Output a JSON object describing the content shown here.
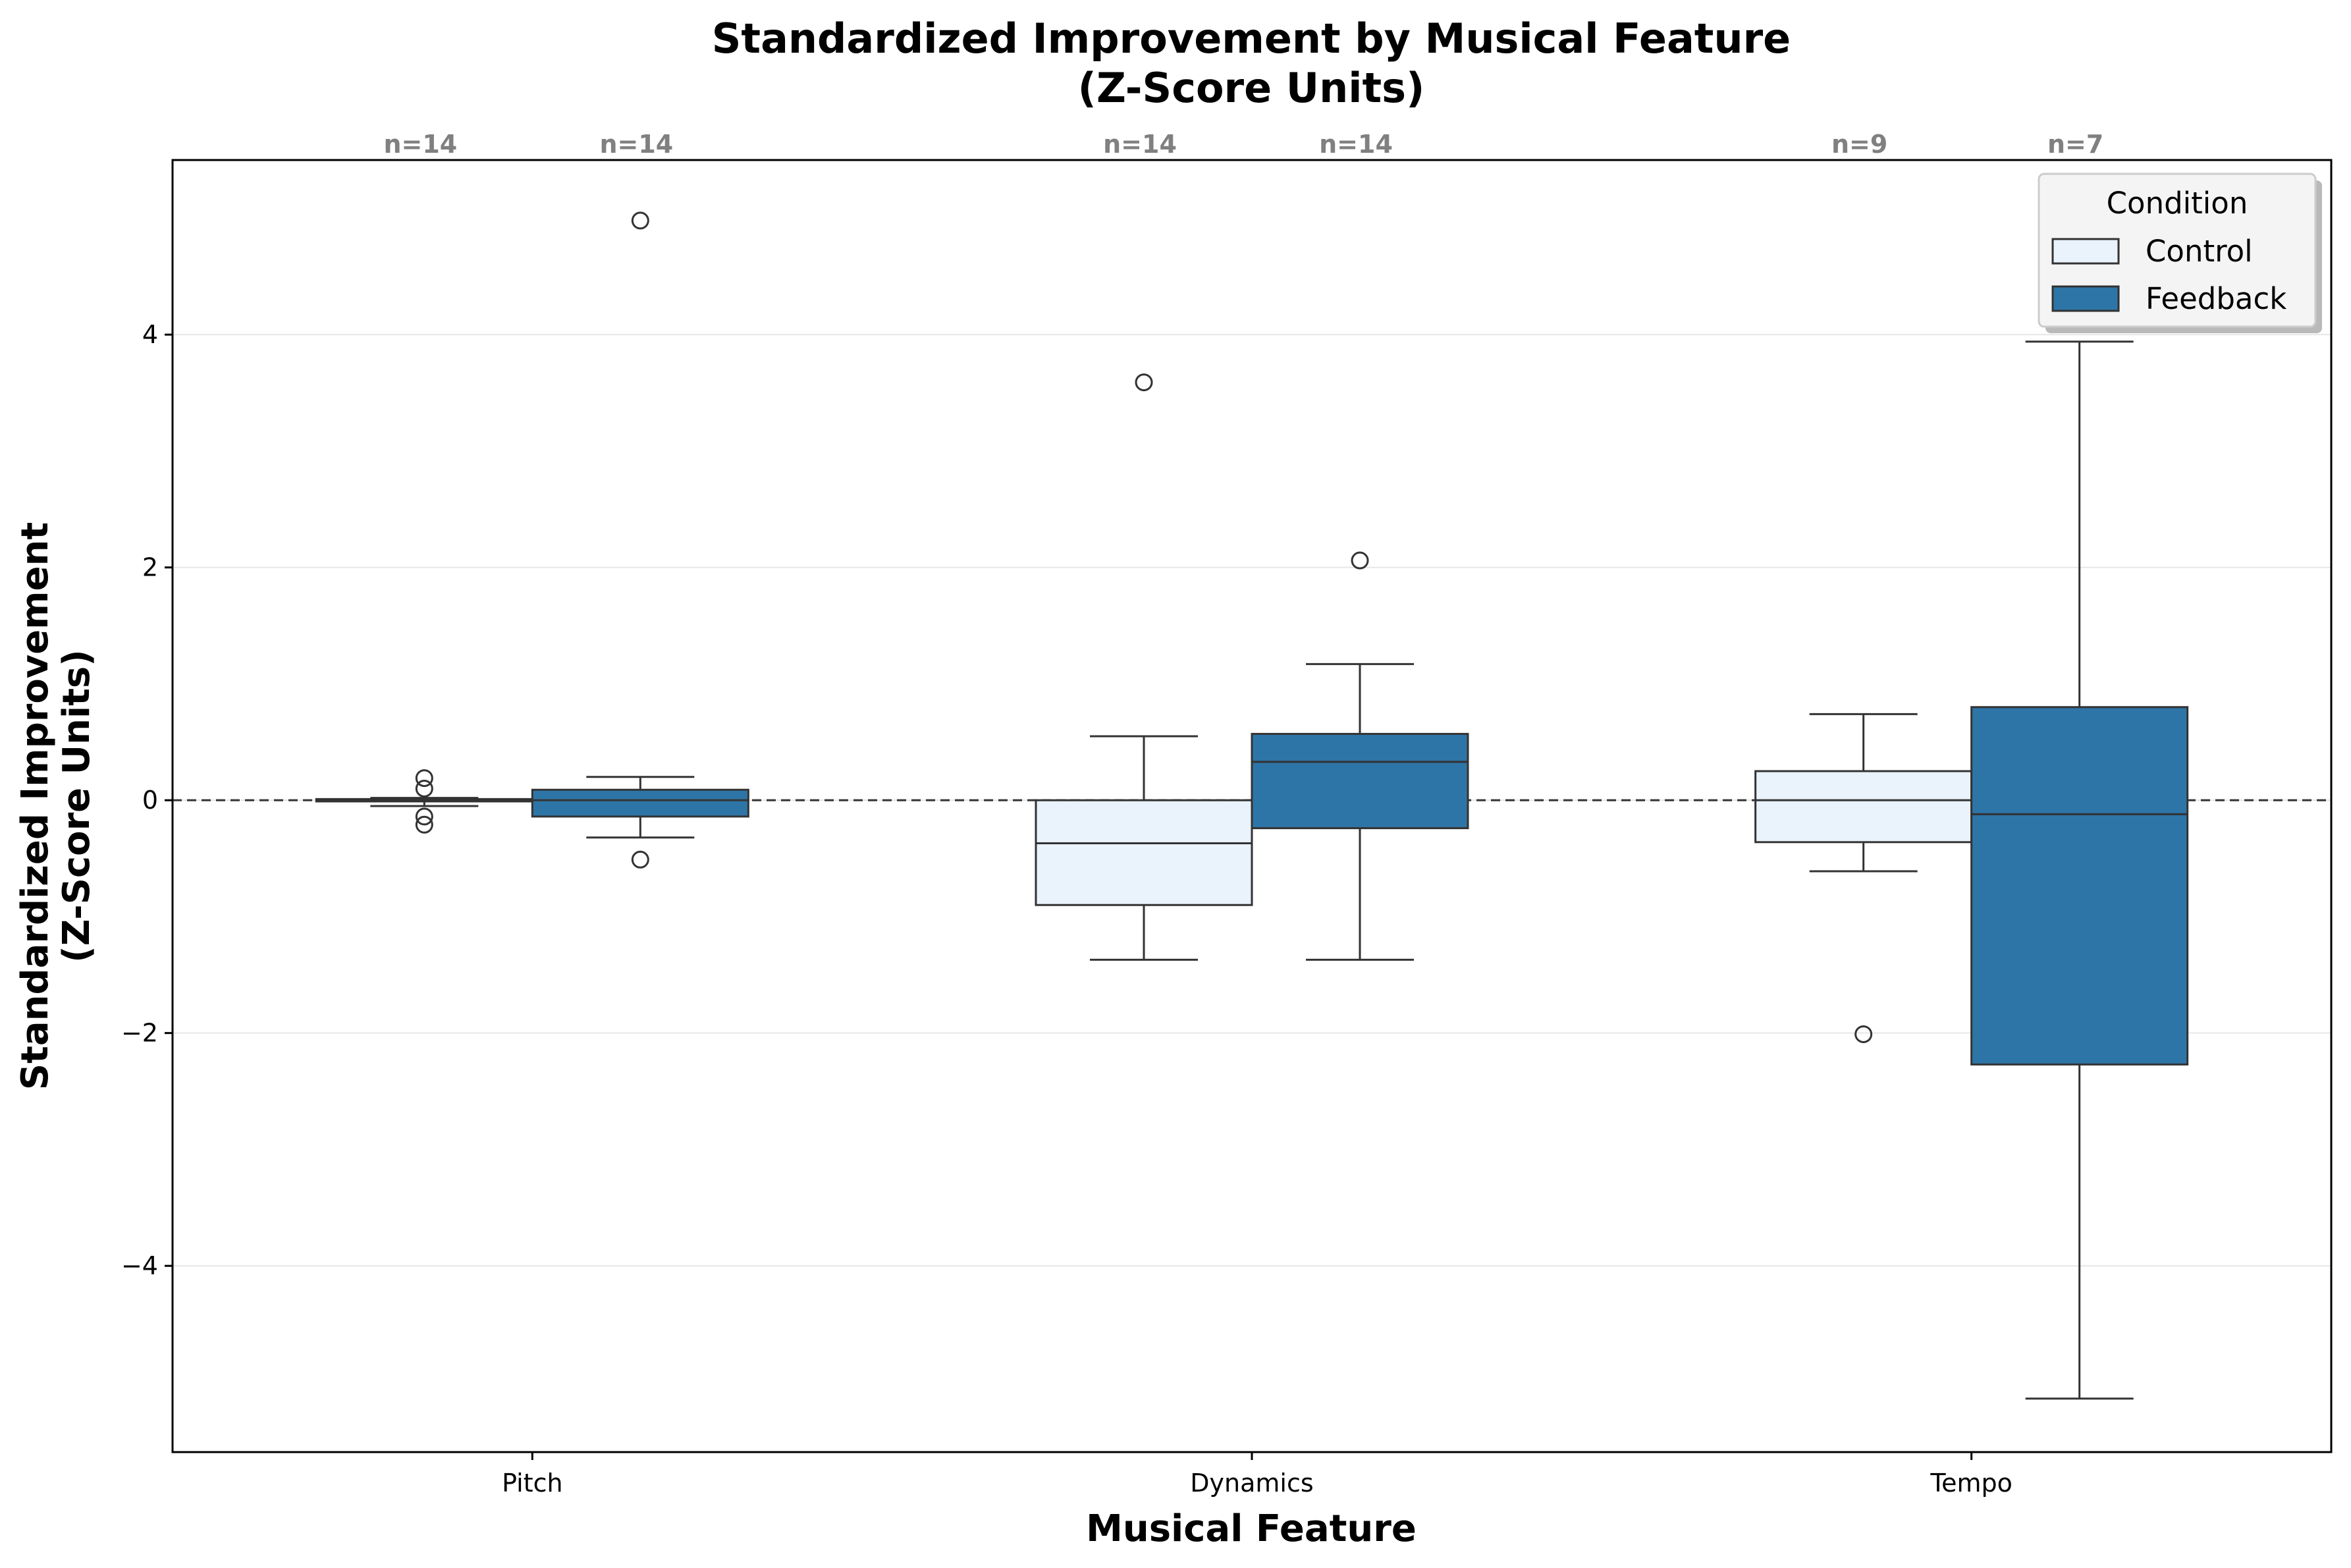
{
  "chart_data": {
    "type": "box",
    "title_line1": "Standardized Improvement by Musical Feature",
    "title_line2": "(Z-Score Units)",
    "xlabel": "Musical Feature",
    "ylabel_line1": "Standardized Improvement",
    "ylabel_line2": "(Z-Score Units)",
    "ylim": [
      -5.6,
      5.5
    ],
    "yticks": [
      -4,
      -2,
      0,
      2,
      4
    ],
    "ytick_labels": [
      "−4",
      "−2",
      "0",
      "2",
      "4"
    ],
    "categories": [
      "Pitch",
      "Dynamics",
      "Tempo"
    ],
    "grid": "horizontal",
    "reference_line": 0,
    "legend": {
      "title": "Condition",
      "placement": "upper right",
      "entries": [
        "Control",
        "Feedback"
      ]
    },
    "series": [
      {
        "name": "Control",
        "color": "#eaf2fb",
        "boxes": [
          {
            "category": "Pitch",
            "n_label": "n=14",
            "whisker_low": -0.05,
            "q1": -0.01,
            "median": 0.0,
            "q3": 0.01,
            "whisker_high": 0.02,
            "outliers": [
              0.19,
              0.1,
              -0.14,
              -0.21
            ]
          },
          {
            "category": "Dynamics",
            "n_label": "n=14",
            "whisker_low": -1.37,
            "q1": -0.9,
            "median": -0.37,
            "q3": 0.0,
            "whisker_high": 0.55,
            "outliers": [
              3.59
            ]
          },
          {
            "category": "Tempo",
            "n_label": "n=9",
            "whisker_low": -0.61,
            "q1": -0.36,
            "median": 0.0,
            "q3": 0.25,
            "whisker_high": 0.74,
            "outliers": [
              -2.01
            ]
          }
        ]
      },
      {
        "name": "Feedback",
        "color": "#2e75a7",
        "boxes": [
          {
            "category": "Pitch",
            "n_label": "n=14",
            "whisker_low": -0.32,
            "q1": -0.14,
            "median": 0.0,
            "q3": 0.09,
            "whisker_high": 0.2,
            "outliers": [
              4.98,
              -0.51
            ]
          },
          {
            "category": "Dynamics",
            "n_label": "n=14",
            "whisker_low": -1.37,
            "q1": -0.24,
            "median": 0.33,
            "q3": 0.57,
            "whisker_high": 1.17,
            "outliers": [
              2.06
            ]
          },
          {
            "category": "Tempo",
            "n_label": "n=7",
            "whisker_low": -5.14,
            "q1": -2.27,
            "median": -0.12,
            "q3": 0.8,
            "whisker_high": 3.94,
            "outliers": []
          }
        ]
      }
    ]
  }
}
